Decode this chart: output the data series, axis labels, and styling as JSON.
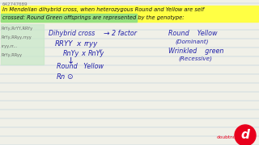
{
  "bg_color": "#f0f0e8",
  "header_id": "642747089",
  "highlight_yellow": "#ffff44",
  "highlight_green": "#88dd88",
  "header_line1": "In Mendelian dihybrid cross, when heterozygous Round and Yellow are self",
  "header_line2": "crossed: Round Green offsprings are represented by the genotype:",
  "left_options": [
    "RrYy,RrYY,RRYy",
    "RrYy,RRyy,rryy",
    "rryy,rr...",
    "RrYy,RRyy"
  ],
  "text_color_main": "#2222aa",
  "text_color_dark": "#111111",
  "text_color_gray": "#666666",
  "logo_color": "#e8001c",
  "line_color": "#b0c8d8"
}
